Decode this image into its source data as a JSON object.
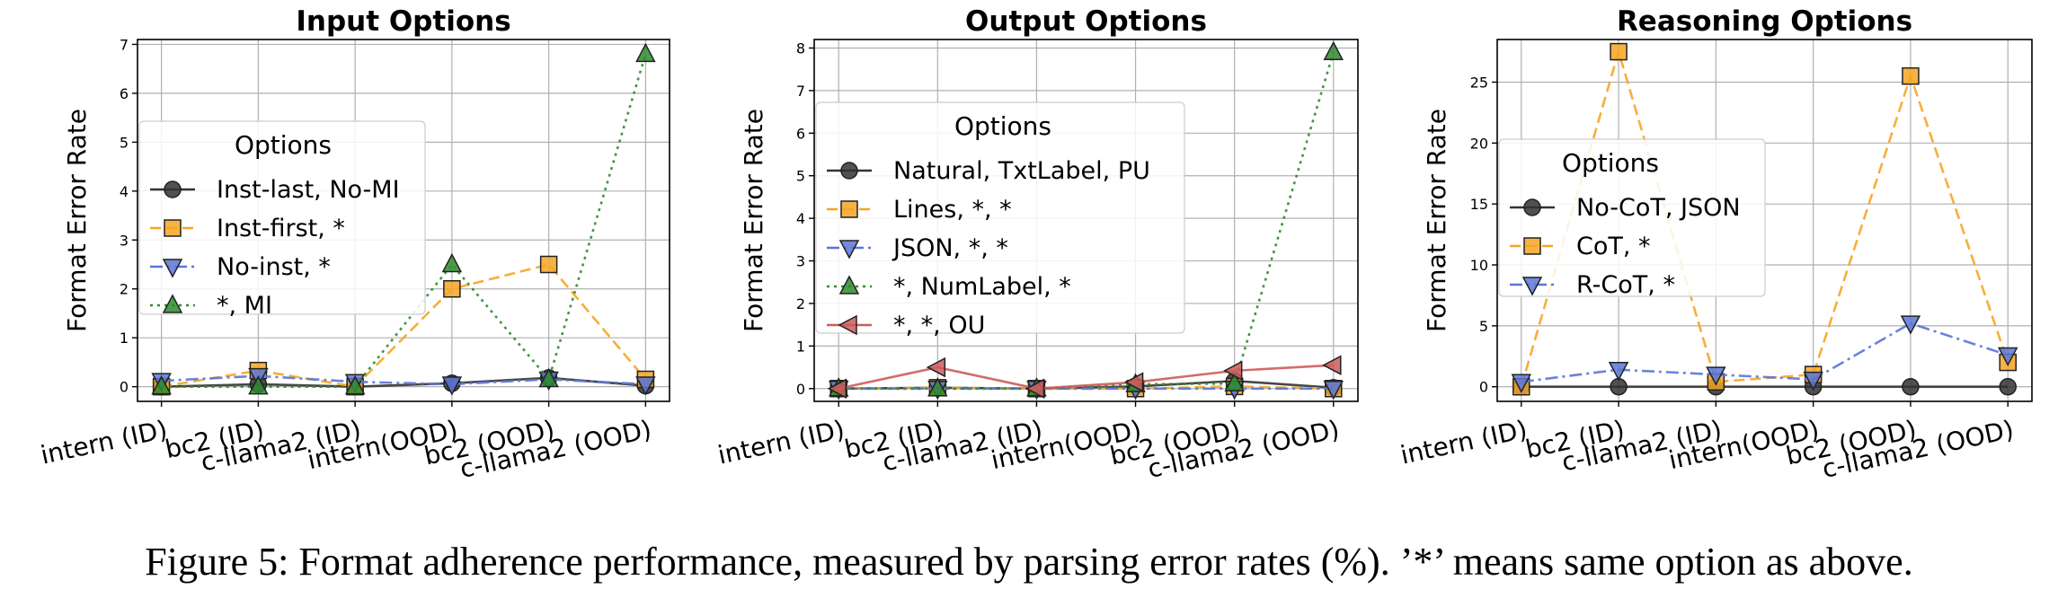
{
  "caption": "Figure 5: Format adherence performance, measured by parsing error rates (%). ’*’ means same option as above.",
  "chart_data": [
    {
      "type": "line",
      "title": "Input Options",
      "ylabel": "Format Error Rate",
      "xlabel": "",
      "categories": [
        "intern (ID)",
        "bc2 (ID)",
        "c-llama2 (ID)",
        "intern(OOD)",
        "bc2 (OOD)",
        "c-llama2 (OOD)"
      ],
      "ylim": [
        -0.3,
        7.1
      ],
      "yticks": [
        0,
        1,
        2,
        3,
        4,
        5,
        6,
        7
      ],
      "grid": true,
      "legend": {
        "title": "Options",
        "placement": "center-left"
      },
      "series": [
        {
          "name": "Inst-last, No-MI",
          "values": [
            0.0,
            0.05,
            0.0,
            0.07,
            0.18,
            0.02
          ],
          "color": "#333333",
          "marker": "circle",
          "dash": "solid"
        },
        {
          "name": "Inst-first, *",
          "values": [
            0.0,
            0.33,
            0.0,
            2.0,
            2.5,
            0.15
          ],
          "color": "#f5a623",
          "marker": "square",
          "dash": "dashed"
        },
        {
          "name": "No-inst, *",
          "values": [
            0.12,
            0.22,
            0.1,
            0.05,
            0.15,
            0.05
          ],
          "color": "#5a76d8",
          "marker": "triangle-down",
          "dash": "dashdot"
        },
        {
          "name": "*, MI",
          "values": [
            0.0,
            0.0,
            0.0,
            2.5,
            0.15,
            6.8
          ],
          "color": "#2e8b2e",
          "marker": "triangle-up",
          "dash": "dotted"
        }
      ]
    },
    {
      "type": "line",
      "title": "Output Options",
      "ylabel": "Format Error Rate",
      "xlabel": "",
      "categories": [
        "intern (ID)",
        "bc2 (ID)",
        "c-llama2 (ID)",
        "intern(OOD)",
        "bc2 (OOD)",
        "c-llama2 (OOD)"
      ],
      "ylim": [
        -0.3,
        8.2
      ],
      "yticks": [
        0,
        1,
        2,
        3,
        4,
        5,
        6,
        7,
        8
      ],
      "grid": true,
      "legend": {
        "title": "Options",
        "placement": "center-left"
      },
      "series": [
        {
          "name": "Natural, TxtLabel, PU",
          "values": [
            0.0,
            0.02,
            0.0,
            0.05,
            0.18,
            0.02
          ],
          "color": "#333333",
          "marker": "circle",
          "dash": "solid"
        },
        {
          "name": "Lines, *, *",
          "values": [
            0.0,
            0.02,
            0.0,
            0.0,
            0.05,
            0.0
          ],
          "color": "#f5a623",
          "marker": "square",
          "dash": "dashed"
        },
        {
          "name": "JSON, *, *",
          "values": [
            0.0,
            0.0,
            0.0,
            0.0,
            0.0,
            0.0
          ],
          "color": "#5a76d8",
          "marker": "triangle-down",
          "dash": "dashdot"
        },
        {
          "name": "*, NumLabel, *",
          "values": [
            0.0,
            0.0,
            0.0,
            0.1,
            0.12,
            7.9
          ],
          "color": "#2e8b2e",
          "marker": "triangle-up",
          "dash": "dotted"
        },
        {
          "name": "*, *, OU",
          "values": [
            0.0,
            0.5,
            0.0,
            0.15,
            0.42,
            0.55
          ],
          "color": "#cd5c5c",
          "marker": "triangle-left",
          "dash": "solid"
        }
      ]
    },
    {
      "type": "line",
      "title": "Reasoning Options",
      "ylabel": "Format Error Rate",
      "xlabel": "",
      "categories": [
        "intern (ID)",
        "bc2 (ID)",
        "c-llama2 (ID)",
        "intern(OOD)",
        "bc2 (OOD)",
        "c-llama2 (OOD)"
      ],
      "ylim": [
        -1.2,
        28.5
      ],
      "yticks": [
        0,
        5,
        10,
        15,
        20,
        25
      ],
      "grid": true,
      "legend": {
        "title": "Options",
        "placement": "center-left"
      },
      "series": [
        {
          "name": "No-CoT, JSON",
          "values": [
            0.0,
            0.0,
            0.0,
            0.0,
            0.0,
            0.0
          ],
          "color": "#333333",
          "marker": "circle",
          "dash": "solid"
        },
        {
          "name": "CoT, *",
          "values": [
            0.0,
            27.5,
            0.4,
            1.0,
            25.5,
            2.0
          ],
          "color": "#f5a623",
          "marker": "square",
          "dash": "dashed"
        },
        {
          "name": "R-CoT, *",
          "values": [
            0.4,
            1.4,
            1.0,
            0.6,
            5.2,
            2.6
          ],
          "color": "#5a76d8",
          "marker": "triangle-down",
          "dash": "dashdot"
        }
      ]
    }
  ]
}
